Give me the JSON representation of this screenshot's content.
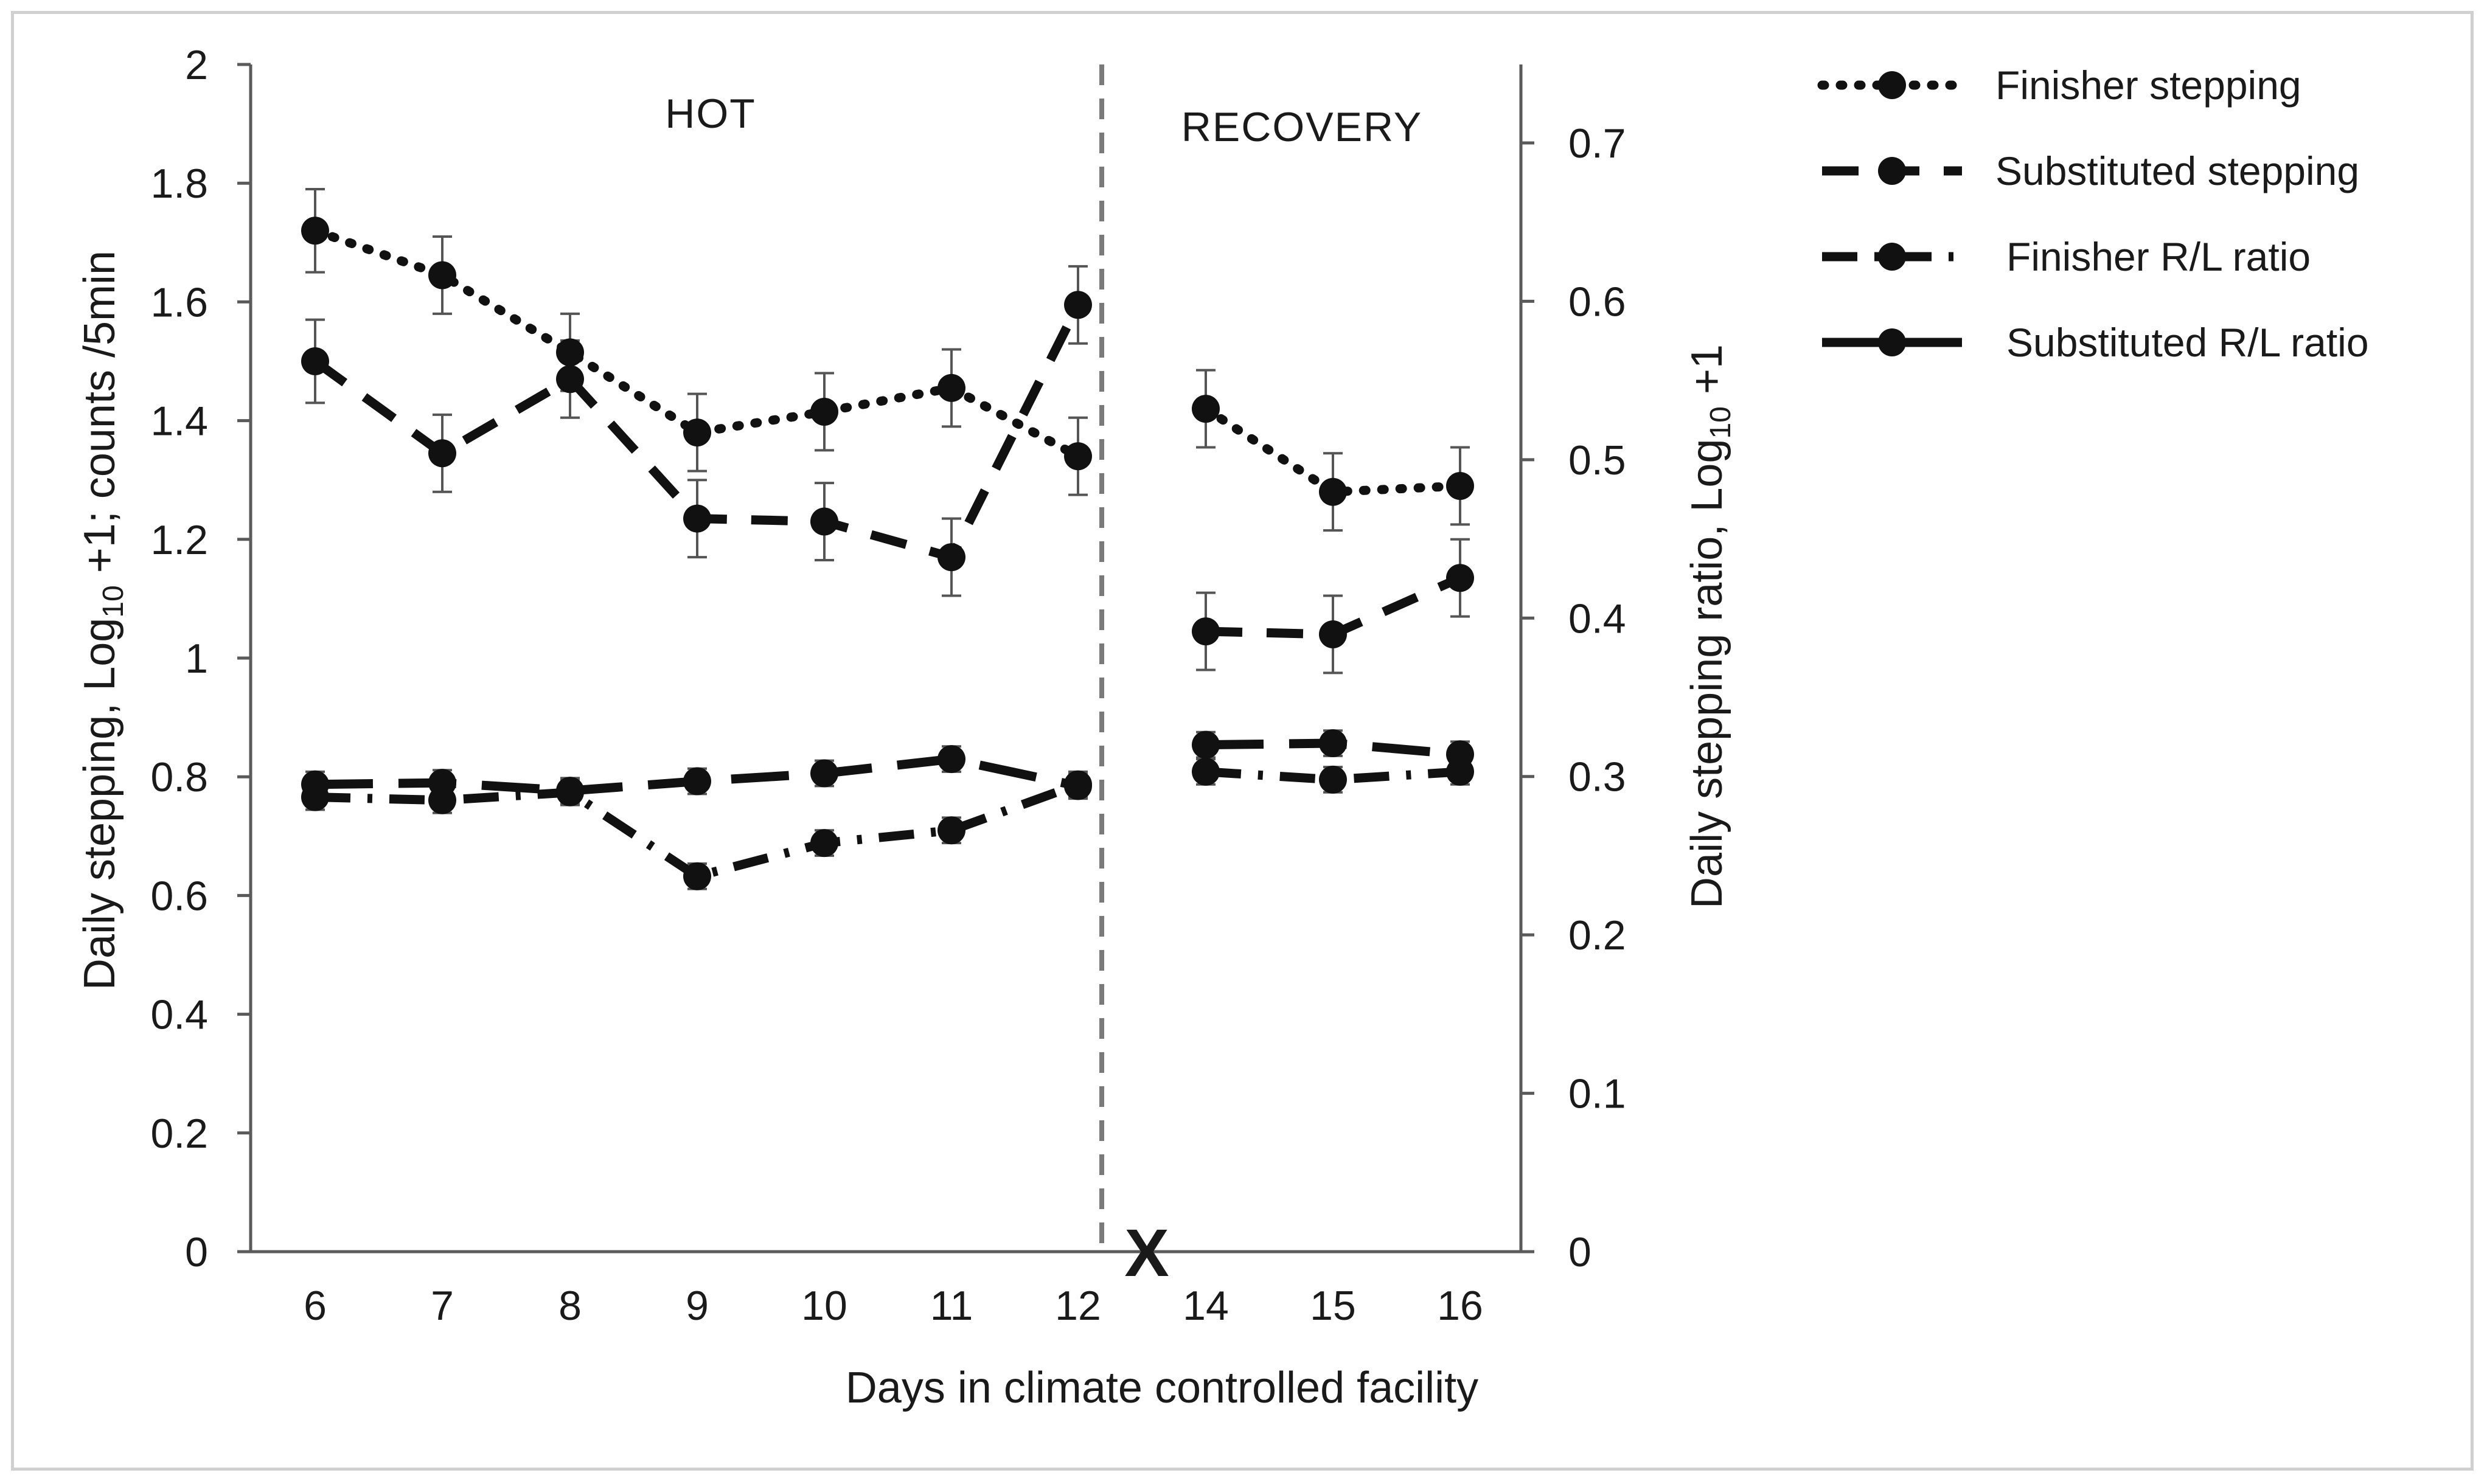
{
  "chart_data": {
    "type": "line",
    "title": "",
    "xlabel": "Days in climate controlled facility",
    "ylabel_left": "Daily stepping, Log10 +1; counts /5min",
    "ylabel_left_parts": {
      "prefix": "Daily stepping, Log",
      "sub": "10",
      "suffix": " +1; counts /5min"
    },
    "ylabel_right": "Daily stepping ratio, Log10 +1",
    "ylabel_right_parts": {
      "prefix": "Daily stepping ratio, Log",
      "sub": "10",
      "suffix": " +1"
    },
    "categories": [
      "6",
      "7",
      "8",
      "9",
      "10",
      "11",
      "12",
      "14",
      "15",
      "16"
    ],
    "ylim_left": [
      0,
      2
    ],
    "ylim_right": [
      0,
      0.75
    ],
    "left_ticks": [
      "0",
      "0.2",
      "0.4",
      "0.6",
      "0.8",
      "1",
      "1.2",
      "1.4",
      "1.6",
      "1.8",
      "2"
    ],
    "left_tick_values": [
      0,
      0.2,
      0.4,
      0.6,
      0.8,
      1,
      1.2,
      1.4,
      1.6,
      1.8,
      2
    ],
    "right_ticks": [
      "0",
      "0.1",
      "0.2",
      "0.3",
      "0.4",
      "0.5",
      "0.6",
      "0.7"
    ],
    "right_tick_values": [
      0,
      0.1,
      0.2,
      0.3,
      0.4,
      0.5,
      0.6,
      0.7
    ],
    "regions": [
      "HOT",
      "RECOVERY"
    ],
    "break_marker": "X",
    "series": [
      {
        "name": "Finisher stepping",
        "axis": "left",
        "style": "dotted",
        "values": [
          1.72,
          1.645,
          1.515,
          1.38,
          1.415,
          1.455,
          1.34,
          1.42,
          1.28,
          1.29
        ],
        "error": [
          0.07,
          0.065,
          0.065,
          0.065,
          0.065,
          0.065,
          0.065,
          0.065,
          0.065,
          0.065
        ]
      },
      {
        "name": "Substituted stepping",
        "axis": "left",
        "style": "dashed",
        "values": [
          1.5,
          1.345,
          1.47,
          1.235,
          1.23,
          1.17,
          1.595,
          1.045,
          1.04,
          1.135
        ],
        "error": [
          0.07,
          0.065,
          0.065,
          0.065,
          0.065,
          0.065,
          0.065,
          0.065,
          0.065,
          0.065
        ]
      },
      {
        "name": "Finisher R/L ratio",
        "axis": "right",
        "style": "dashdot",
        "values": [
          0.287,
          0.285,
          0.29,
          0.237,
          0.258,
          0.266,
          0.295,
          0.303,
          0.298,
          0.303
        ],
        "error": [
          0.008,
          0.008,
          0.008,
          0.008,
          0.008,
          0.008,
          0.008,
          0.008,
          0.008,
          0.008
        ]
      },
      {
        "name": "Substituted R/L ratio",
        "axis": "right",
        "style": "longdash",
        "values": [
          0.295,
          0.296,
          0.291,
          0.297,
          0.302,
          0.311,
          0.294,
          0.32,
          0.321,
          0.314
        ],
        "error": [
          0.008,
          0.008,
          0.008,
          0.008,
          0.008,
          0.008,
          0.008,
          0.008,
          0.008,
          0.008
        ]
      }
    ],
    "legend_position": "top-right",
    "colors": {
      "series": "#111111",
      "axis": "#5a5a5a",
      "divider": "#7a7a7a",
      "errorbar": "#555555"
    }
  }
}
